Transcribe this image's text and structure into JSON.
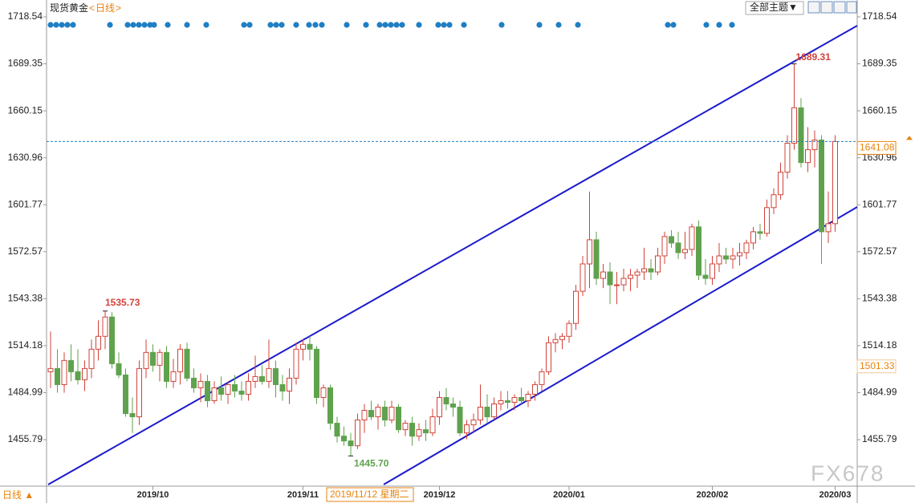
{
  "header": {
    "symbol": "现货黄金",
    "period": "日线",
    "theme_button": "全部主题▼",
    "bottom_period": "日线 ▲",
    "crosshair_date": "2019/11/12 星期二",
    "watermark": "FX678"
  },
  "chart_data": {
    "type": "candlestick",
    "categories": [
      null,
      null,
      null,
      null,
      null,
      null,
      null,
      null,
      null,
      null,
      null,
      null,
      null,
      null,
      null,
      "2019/10",
      null,
      null,
      null,
      null,
      null,
      null,
      null,
      null,
      null,
      null,
      null,
      null,
      null,
      null,
      null,
      null,
      null,
      null,
      null,
      null,
      null,
      "2019/11",
      null,
      null,
      null,
      null,
      null,
      null,
      null,
      null,
      null,
      null,
      null,
      null,
      null,
      null,
      null,
      null,
      null,
      null,
      null,
      "2019/12",
      null,
      null,
      null,
      null,
      null,
      null,
      null,
      null,
      null,
      null,
      null,
      null,
      null,
      null,
      null,
      null,
      null,
      null,
      "2020/01",
      null,
      null,
      null,
      null,
      null,
      null,
      null,
      null,
      null,
      null,
      null,
      null,
      null,
      null,
      null,
      null,
      null,
      null,
      null,
      null,
      "2020/02",
      null,
      null,
      null,
      null,
      null,
      null,
      null,
      null,
      null,
      null,
      null,
      null,
      null,
      null,
      null,
      null,
      null,
      "2020/03"
    ],
    "open": [
      1498,
      1500,
      1490,
      1505,
      1498,
      1493,
      1500,
      1512,
      1520,
      1532,
      1503,
      1496,
      1472,
      1470,
      1500,
      1510,
      1502,
      1510,
      1492,
      1498,
      1512,
      1494,
      1488,
      1492,
      1480,
      1488,
      1484,
      1490,
      1486,
      1484,
      1492,
      1495,
      1492,
      1500,
      1490,
      1486,
      1494,
      1512,
      1515,
      1512,
      1482,
      1488,
      1466,
      1458,
      1455,
      1452,
      1468,
      1474,
      1470,
      1476,
      1468,
      1476,
      1462,
      1466,
      1458,
      1462,
      1460,
      1470,
      1482,
      1478,
      1476,
      1460,
      1465,
      1468,
      1476,
      1470,
      1478,
      1480,
      1479,
      1482,
      1480,
      1484,
      1490,
      1498,
      1516,
      1518,
      1520,
      1528,
      1548,
      1565,
      1580,
      1556,
      1560,
      1552,
      1552,
      1556,
      1558,
      1560,
      1562,
      1560,
      1570,
      1582,
      1578,
      1572,
      1574,
      1588,
      1558,
      1556,
      1565,
      1570,
      1568,
      1570,
      1572,
      1578,
      1585,
      1584,
      1600,
      1608,
      1622,
      1640,
      1662,
      1628,
      1636,
      1642,
      1585,
      1590
    ],
    "high": [
      1523,
      1512,
      1510,
      1515,
      1512,
      1505,
      1518,
      1530,
      1535.73,
      1535,
      1510,
      1500,
      1482,
      1505,
      1518,
      1515,
      1512,
      1514,
      1506,
      1515,
      1516,
      1500,
      1497,
      1496,
      1492,
      1495,
      1492,
      1496,
      1492,
      1497,
      1508,
      1502,
      1518,
      1505,
      1496,
      1500,
      1516,
      1518,
      1520,
      1514,
      1490,
      1490,
      1470,
      1464,
      1460,
      1472,
      1478,
      1480,
      1478,
      1480,
      1480,
      1478,
      1468,
      1470,
      1466,
      1468,
      1475,
      1486,
      1488,
      1482,
      1480,
      1468,
      1472,
      1490,
      1484,
      1482,
      1486,
      1486,
      1484,
      1488,
      1486,
      1492,
      1500,
      1520,
      1522,
      1522,
      1530,
      1552,
      1570,
      1610,
      1585,
      1565,
      1566,
      1560,
      1562,
      1562,
      1562,
      1575,
      1568,
      1575,
      1585,
      1586,
      1585,
      1585,
      1590,
      1592,
      1568,
      1570,
      1578,
      1575,
      1575,
      1578,
      1580,
      1588,
      1590,
      1605,
      1612,
      1628,
      1645,
      1689.31,
      1668,
      1650,
      1648,
      1645,
      1610,
      1645
    ],
    "low": [
      1488,
      1485,
      1485,
      1492,
      1490,
      1486,
      1494,
      1505,
      1512,
      1500,
      1494,
      1470,
      1460,
      1465,
      1494,
      1498,
      1492,
      1488,
      1488,
      1490,
      1492,
      1485,
      1479,
      1476,
      1478,
      1480,
      1478,
      1482,
      1480,
      1480,
      1488,
      1490,
      1488,
      1482,
      1480,
      1478,
      1490,
      1505,
      1505,
      1478,
      1476,
      1462,
      1454,
      1452,
      1445.7,
      1450,
      1460,
      1468,
      1462,
      1464,
      1466,
      1460,
      1458,
      1452,
      1455,
      1455,
      1458,
      1465,
      1474,
      1470,
      1458,
      1456,
      1460,
      1465,
      1466,
      1468,
      1474,
      1475,
      1474,
      1478,
      1476,
      1480,
      1486,
      1496,
      1510,
      1512,
      1516,
      1524,
      1545,
      1550,
      1552,
      1550,
      1540,
      1540,
      1548,
      1548,
      1550,
      1555,
      1555,
      1558,
      1565,
      1575,
      1568,
      1568,
      1570,
      1555,
      1552,
      1552,
      1560,
      1565,
      1562,
      1564,
      1568,
      1574,
      1580,
      1582,
      1596,
      1605,
      1618,
      1636,
      1625,
      1622,
      1625,
      1565,
      1578,
      1585
    ],
    "close": [
      1500,
      1490,
      1505,
      1498,
      1493,
      1500,
      1512,
      1520,
      1532,
      1503,
      1496,
      1472,
      1470,
      1500,
      1510,
      1502,
      1510,
      1492,
      1498,
      1512,
      1494,
      1488,
      1492,
      1480,
      1488,
      1484,
      1490,
      1486,
      1484,
      1492,
      1495,
      1492,
      1500,
      1490,
      1486,
      1494,
      1512,
      1515,
      1512,
      1482,
      1488,
      1466,
      1458,
      1455,
      1452,
      1468,
      1474,
      1470,
      1476,
      1468,
      1476,
      1462,
      1466,
      1458,
      1462,
      1460,
      1470,
      1482,
      1478,
      1476,
      1460,
      1465,
      1468,
      1476,
      1470,
      1478,
      1480,
      1479,
      1482,
      1480,
      1484,
      1490,
      1498,
      1516,
      1518,
      1520,
      1528,
      1548,
      1565,
      1580,
      1556,
      1560,
      1552,
      1552,
      1556,
      1558,
      1560,
      1562,
      1560,
      1570,
      1582,
      1578,
      1572,
      1574,
      1588,
      1558,
      1556,
      1565,
      1570,
      1568,
      1570,
      1572,
      1578,
      1585,
      1584,
      1600,
      1608,
      1622,
      1640,
      1662,
      1628,
      1636,
      1642,
      1585,
      1590,
      1641.08
    ],
    "up_color": "#d0433a",
    "down_color": "#5fa24e",
    "ylim": [
      1427.4,
      1718.54
    ],
    "yticks": [
      1455.79,
      1484.99,
      1514.18,
      1543.38,
      1572.57,
      1601.77,
      1630.96,
      1660.15,
      1689.35,
      1718.54
    ],
    "annotations": [
      "1535.73",
      "1445.70",
      "1689.31"
    ],
    "last_price": {
      "value": 1641.08,
      "label": "1641.08"
    },
    "indicator_price": {
      "value": 1501.33,
      "label": "1501.33"
    },
    "trendline_color": "#1a1acc"
  }
}
